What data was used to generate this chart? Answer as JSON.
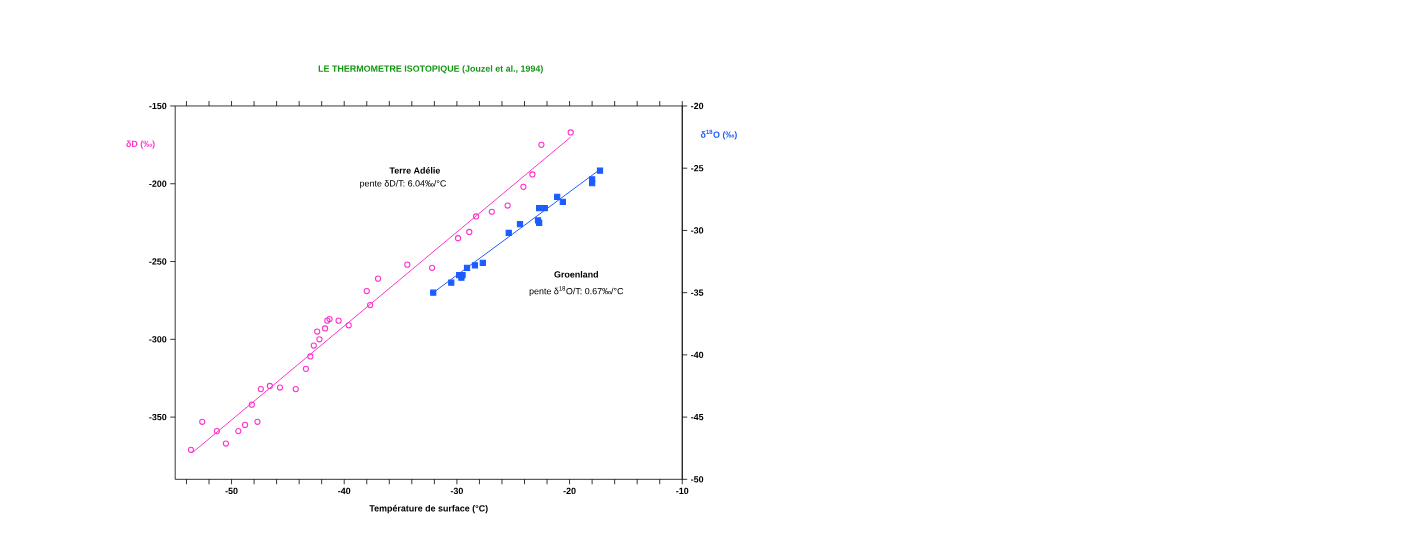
{
  "chart_data": {
    "type": "scatter",
    "title": "LE THERMOMETRE ISOTOPIQUE (Jouzel et al., 1994)",
    "xlabel": "Température de surface (°C)",
    "ylabel": "δD (‰)",
    "y2label": "δ$^{18}$O (‰)",
    "xlim": [
      -55,
      -10
    ],
    "xticks": [
      {
        "value": -54,
        "label": null
      },
      {
        "value": -52,
        "label": null
      },
      -50,
      {
        "value": -48,
        "label": null
      },
      {
        "value": -46,
        "label": null
      },
      {
        "value": -44,
        "label": null
      },
      {
        "value": -42,
        "label": null
      },
      -40,
      {
        "value": -38,
        "label": null
      },
      {
        "value": -36,
        "label": null
      },
      {
        "value": -34,
        "label": null
      },
      {
        "value": -32,
        "label": null
      },
      -30,
      {
        "value": -28,
        "label": null
      },
      {
        "value": -26,
        "label": null
      },
      {
        "value": -24,
        "label": null
      },
      {
        "value": -22,
        "label": null
      },
      -20,
      {
        "value": -18,
        "label": null
      },
      {
        "value": -16,
        "label": null
      },
      {
        "value": -14,
        "label": null
      },
      {
        "value": -12,
        "label": null
      },
      -10
    ],
    "ylim": [
      -390,
      -150
    ],
    "yticks": [
      -350,
      -300,
      -250,
      -200,
      -150
    ],
    "y2lim": [
      -50,
      -20
    ],
    "y2ticks": [
      -50,
      -45,
      -40,
      -35,
      -30,
      -25,
      -20
    ],
    "grid": false,
    "annotations": [
      "Terre Adélie",
      "pente δD/T: 6.04‰/°C",
      "Groenland",
      "pente δ$^{18}$O/T: 0.67‰/°C"
    ],
    "series": [
      {
        "color": "#ff33cc",
        "marker": "circle",
        "x": [
          -53.6,
          -52.6,
          -51.3,
          -50.5,
          -49.4,
          -48.8,
          -47.7,
          -48.2,
          -47.4,
          -46.6,
          -45.7,
          -44.3,
          -43.4,
          -43.0,
          -42.7,
          -42.2,
          -42.4,
          -41.7,
          -41.5,
          -41.3,
          -40.5,
          -39.6,
          -38.0,
          -37.7,
          -37.0,
          -34.4,
          -32.2,
          -29.9,
          -28.9,
          -28.3,
          -26.9,
          -25.5,
          -24.1,
          -23.3,
          -22.5,
          -19.9
        ],
        "values": [
          -371,
          -353,
          -359,
          -367,
          -359,
          -355,
          -353,
          -342,
          -332,
          -330,
          -331,
          -332,
          -319,
          -311,
          -304,
          -300,
          -295,
          -293,
          -288,
          -287,
          -288,
          -291,
          -269,
          -278,
          -261,
          -252,
          -254,
          -235,
          -231,
          -221,
          -218,
          -214,
          -202,
          -194,
          -175,
          -167
        ]
      },
      {
        "type": "line",
        "color": "#ff33cc",
        "x": [
          -53.5,
          -19.9
        ],
        "values": [
          -373,
          -170
        ]
      },
      {
        "axis": "y2",
        "color": "#1a5cff",
        "marker": "square",
        "x": [
          -17.3,
          -18.0,
          -18.0,
          -21.1,
          -20.6,
          -22.7,
          -22.2,
          -22.8,
          -22.7,
          -24.4,
          -25.4,
          -27.7,
          -28.4,
          -29.1,
          -29.5,
          -29.8,
          -29.6,
          -30.5,
          -32.1
        ],
        "values": [
          -25.2,
          -25.9,
          -26.2,
          -27.3,
          -27.7,
          -28.2,
          -28.2,
          -29.2,
          -29.4,
          -29.5,
          -30.2,
          -32.6,
          -32.8,
          -33.0,
          -33.6,
          -33.6,
          -33.8,
          -34.2,
          -35.0
        ]
      },
      {
        "type": "line",
        "axis": "y2",
        "color": "#1a5cff",
        "x": [
          -32.1,
          -17.3
        ],
        "values": [
          -35.0,
          -25.1
        ]
      }
    ]
  }
}
